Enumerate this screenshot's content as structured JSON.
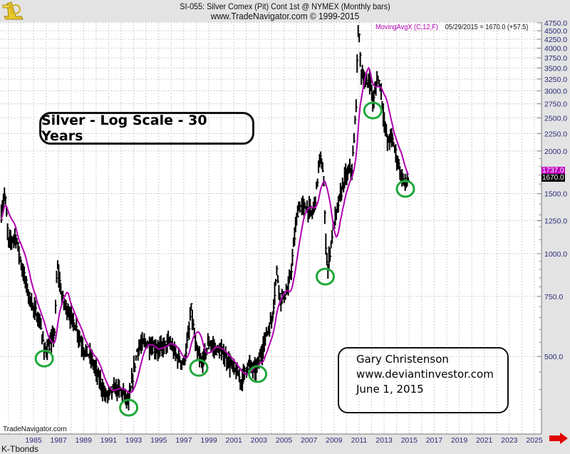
{
  "header": {
    "title": "SI-055:  Silver Comex (Pit) Cont 1st @ NYMEX  (Monthly bars)",
    "subtitle": "www.TradeNavigator.com © 1999-2015"
  },
  "watermark": "TradeNavigator.com",
  "footer_label": "K-Tbonds",
  "legend": {
    "indicator": "MovingAvgX (C,12,F)",
    "readout": "05/29/2015 = 1670.0 (+57.5)"
  },
  "price_tags": {
    "ma": "1737.0",
    "last": "1670.0"
  },
  "annotations": {
    "title_box": "Silver - Log Scale - 30 Years",
    "author_lines": [
      "Gary Christenson",
      "www.deviantinvestor.com",
      "June 1, 2015"
    ]
  },
  "colors": {
    "price": "#000000",
    "moving_average": "#b000b0",
    "circles": "#1fa83a",
    "axis_text": "#2b2b7a",
    "ma_tag": "#c000c0",
    "arrow": "#e00000"
  },
  "chart_data": {
    "type": "line",
    "scale": "log",
    "grid": true,
    "xlim": [
      1982.43,
      2025.9
    ],
    "ylim": [
      330,
      4900
    ],
    "x_ticks": [
      "1985",
      "1987",
      "1989",
      "1991",
      "1993",
      "1995",
      "1997",
      "1999",
      "2001",
      "2003",
      "2005",
      "2007",
      "2009",
      "2011",
      "2013",
      "2015",
      "2017",
      "2019",
      "2021",
      "2023",
      "2025"
    ],
    "y_ticks": [
      "4750.0",
      "4500.0",
      "4250.0",
      "4000.0",
      "3750.0",
      "3500.0",
      "3250.0",
      "3000.0",
      "2750.0",
      "2500.0",
      "2250.0",
      "2000.0",
      "1500.0",
      "1250.0",
      "1000.0",
      "750.0",
      "500.0"
    ],
    "series": [
      {
        "name": "SI-055",
        "style": "monthly-bars",
        "points": [
          [
            1982.43,
            1310
          ],
          [
            1982.71,
            1510
          ],
          [
            1983.0,
            1080
          ],
          [
            1983.57,
            1130
          ],
          [
            1984.14,
            890
          ],
          [
            1984.72,
            735
          ],
          [
            1985.57,
            620
          ],
          [
            1985.86,
            520
          ],
          [
            1986.43,
            550
          ],
          [
            1986.71,
            600
          ],
          [
            1986.89,
            935
          ],
          [
            1987.29,
            735
          ],
          [
            1987.86,
            670
          ],
          [
            1988.43,
            606
          ],
          [
            1989.0,
            525
          ],
          [
            1989.57,
            500
          ],
          [
            1990.43,
            413
          ],
          [
            1990.71,
            384
          ],
          [
            1991.57,
            403
          ],
          [
            1992.14,
            394
          ],
          [
            1992.6,
            366
          ],
          [
            1993.0,
            455
          ],
          [
            1993.29,
            525
          ],
          [
            1993.86,
            550
          ],
          [
            1994.43,
            537
          ],
          [
            1995.0,
            525
          ],
          [
            1995.86,
            550
          ],
          [
            1996.43,
            500
          ],
          [
            1997.0,
            477
          ],
          [
            1997.46,
            606
          ],
          [
            1997.57,
            700
          ],
          [
            1997.97,
            525
          ],
          [
            1998.43,
            477
          ],
          [
            1999.0,
            550
          ],
          [
            1999.57,
            525
          ],
          [
            2000.14,
            512
          ],
          [
            2000.72,
            477
          ],
          [
            2001.29,
            444
          ],
          [
            2001.57,
            423
          ],
          [
            2002.14,
            477
          ],
          [
            2002.72,
            455
          ],
          [
            2003.12,
            500
          ],
          [
            2003.57,
            578
          ],
          [
            2004.03,
            636
          ],
          [
            2004.43,
            891
          ],
          [
            2004.72,
            735
          ],
          [
            2005.29,
            771
          ],
          [
            2005.57,
            891
          ],
          [
            2005.86,
            1133
          ],
          [
            2006.14,
            1374
          ],
          [
            2006.72,
            1374
          ],
          [
            2007.29,
            1310
          ],
          [
            2007.57,
            1511
          ],
          [
            2007.86,
            1923
          ],
          [
            2008.14,
            1747
          ],
          [
            2008.31,
            1133
          ],
          [
            2008.49,
            891
          ],
          [
            2008.83,
            1133
          ],
          [
            2009.29,
            1374
          ],
          [
            2009.86,
            1665
          ],
          [
            2010.43,
            1790
          ],
          [
            2010.6,
            2116
          ],
          [
            2010.77,
            2824
          ],
          [
            2010.94,
            4680
          ],
          [
            2011.17,
            3420
          ],
          [
            2011.57,
            3110
          ],
          [
            2011.86,
            3260
          ],
          [
            2012.14,
            2760
          ],
          [
            2012.43,
            3260
          ],
          [
            2012.72,
            3110
          ],
          [
            2013.0,
            2445
          ],
          [
            2013.29,
            2116
          ],
          [
            2013.57,
            2220
          ],
          [
            2013.86,
            2020
          ],
          [
            2014.14,
            1830
          ],
          [
            2014.43,
            1665
          ],
          [
            2014.72,
            1600
          ],
          [
            2015.0,
            1670
          ]
        ]
      },
      {
        "name": "MovingAvgX (C,12,F)",
        "style": "line",
        "period_months": 12
      }
    ],
    "circled_lows": [
      [
        1985.86,
        493
      ],
      [
        1992.6,
        354
      ],
      [
        1998.2,
        463
      ],
      [
        2002.9,
        444
      ],
      [
        2008.3,
        857
      ],
      [
        2012.1,
        2628
      ],
      [
        2014.7,
        1549
      ]
    ]
  }
}
